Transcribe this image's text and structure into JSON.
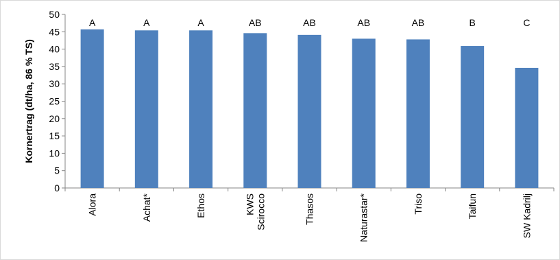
{
  "chart_data": {
    "type": "bar",
    "ylabel": "Kornertrag (dt/ha, 86 % TS)",
    "xlabel": "",
    "ylim": [
      0,
      50
    ],
    "ytick_step": 5,
    "grid": false,
    "legend": "none",
    "bar_color": "#4f81bd",
    "categories": [
      {
        "label": [
          "Alora"
        ]
      },
      {
        "label": [
          "Achat*"
        ]
      },
      {
        "label": [
          "Ethos"
        ]
      },
      {
        "label": [
          "KWS",
          "Scirocco"
        ]
      },
      {
        "label": [
          "Thasos"
        ]
      },
      {
        "label": [
          "Naturastar*"
        ]
      },
      {
        "label": [
          "Triso"
        ]
      },
      {
        "label": [
          "Taifun"
        ]
      },
      {
        "label": [
          "SW Kadrilj"
        ]
      }
    ],
    "values": [
      45.7,
      45.4,
      45.4,
      44.6,
      44.1,
      43.0,
      42.8,
      40.9,
      34.6
    ],
    "significance_letters": [
      "A",
      "A",
      "A",
      "AB",
      "AB",
      "AB",
      "AB",
      "B",
      "C"
    ]
  }
}
